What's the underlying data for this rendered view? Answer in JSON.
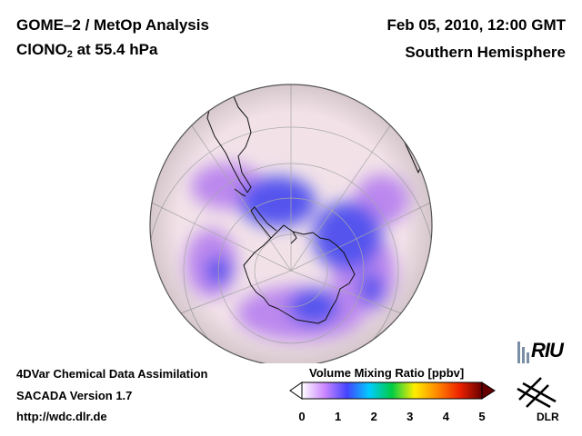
{
  "header": {
    "title_line1": "GOME–2 / MetOp Analysis",
    "species": "ClONO",
    "species_subscript": "2",
    "level": " at 55.4 hPa",
    "date": "Feb 05, 2010, 12:00 GMT",
    "hemisphere": "Southern Hemisphere"
  },
  "footer": {
    "line1": "4DVar Chemical Data Assimilation",
    "line2": "SACADA Version 1.7",
    "line3": "http://wdc.dlr.de"
  },
  "colorbar": {
    "title": "Volume Mixing Ratio [ppbv]",
    "ticks": [
      "0",
      "1",
      "2",
      "3",
      "4",
      "5"
    ],
    "range": [
      0,
      5
    ],
    "colors": [
      "#ffffff",
      "#cc88ff",
      "#4444ff",
      "#00ccff",
      "#00cc44",
      "#ffee00",
      "#ff8800",
      "#ee2200",
      "#660000"
    ]
  },
  "logos": {
    "riu": "RIU",
    "dlr": "DLR"
  },
  "map": {
    "background_color": "#f2e2e8",
    "low_color": "#5555ee",
    "mid_color": "#bb88ee"
  }
}
